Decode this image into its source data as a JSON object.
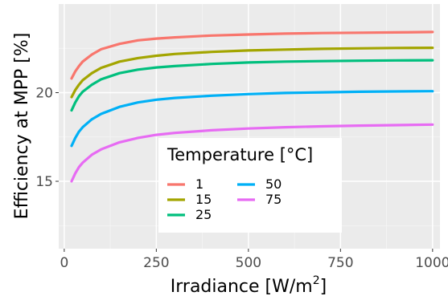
{
  "chart_data": {
    "type": "line",
    "xlabel": "Irradiance [W/m",
    "xlabel_sup": "2",
    "xlabel_end": "]",
    "ylabel": "Efficiency at MPP [%]",
    "xlim": [
      -15,
      1020
    ],
    "ylim": [
      11.2,
      25
    ],
    "x_ticks": [
      "0",
      "250",
      "500",
      "750",
      "1000"
    ],
    "y_ticks": [
      "15",
      "20"
    ],
    "grid": true,
    "legend": {
      "title": "Temperature [°C]",
      "placement": "bottom-center"
    },
    "x": [
      20,
      30,
      40,
      50,
      75,
      100,
      150,
      200,
      250,
      300,
      400,
      500,
      600,
      700,
      800,
      900,
      1000
    ],
    "series": [
      {
        "name": "1",
        "color": "#F8766D",
        "values": [
          20.8,
          21.2,
          21.5,
          21.75,
          22.15,
          22.45,
          22.75,
          22.95,
          23.05,
          23.12,
          23.22,
          23.28,
          23.33,
          23.36,
          23.38,
          23.4,
          23.42
        ]
      },
      {
        "name": "15",
        "color": "#A3A500",
        "values": [
          19.75,
          20.15,
          20.45,
          20.7,
          21.1,
          21.4,
          21.75,
          21.95,
          22.08,
          22.18,
          22.3,
          22.38,
          22.43,
          22.47,
          22.5,
          22.52,
          22.53
        ]
      },
      {
        "name": "25",
        "color": "#00BF7D",
        "values": [
          19.0,
          19.45,
          19.8,
          20.05,
          20.45,
          20.75,
          21.1,
          21.3,
          21.42,
          21.5,
          21.62,
          21.7,
          21.75,
          21.78,
          21.8,
          21.82,
          21.83
        ]
      },
      {
        "name": "50",
        "color": "#00B0F6",
        "values": [
          17.0,
          17.45,
          17.8,
          18.05,
          18.5,
          18.8,
          19.2,
          19.45,
          19.6,
          19.7,
          19.83,
          19.92,
          19.98,
          20.02,
          20.05,
          20.07,
          20.08
        ]
      },
      {
        "name": "75",
        "color": "#E76BF3",
        "values": [
          15.0,
          15.45,
          15.8,
          16.05,
          16.5,
          16.8,
          17.2,
          17.45,
          17.62,
          17.73,
          17.88,
          17.98,
          18.05,
          18.1,
          18.14,
          18.17,
          18.2
        ]
      }
    ]
  }
}
